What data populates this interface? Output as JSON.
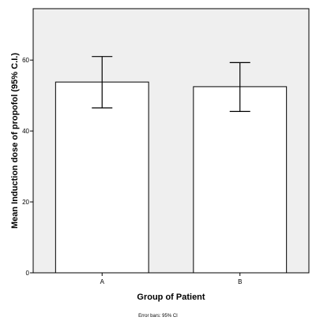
{
  "chart_data": {
    "type": "bar",
    "categories": [
      "A",
      "B"
    ],
    "values": [
      53.8,
      52.5
    ],
    "error_bars": [
      {
        "low": 46.5,
        "high": 61.0
      },
      {
        "low": 45.5,
        "high": 59.3
      }
    ],
    "xlabel": "Group of Patient",
    "ylabel": "Mean Induction dose of propofol (95% C.I.)",
    "ylim": [
      0,
      74.5
    ],
    "yticks": [
      0,
      20,
      40,
      60
    ],
    "footnote": "Error bars: 95% CI",
    "grid": false,
    "colors": {
      "plot_background": "#efefef",
      "bar_fill": "#ffffff",
      "bar_stroke": "#000000"
    }
  }
}
